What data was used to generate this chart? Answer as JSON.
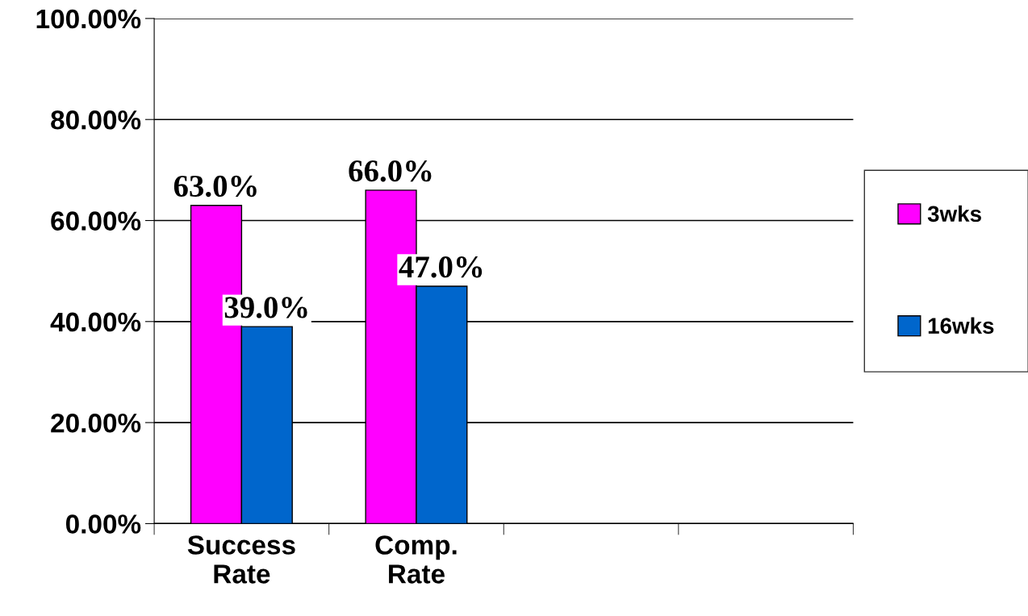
{
  "chart_data": {
    "type": "bar",
    "categories": [
      "Success\nRate",
      "Comp.\nRate",
      null,
      null
    ],
    "series": [
      {
        "name": "3wks",
        "color": "#ff00ff",
        "values": [
          63,
          66,
          null,
          null
        ],
        "value_labels": [
          "63.0%",
          "66.0%",
          null,
          null
        ]
      },
      {
        "name": "16wks",
        "color": "#0066cc",
        "values": [
          39,
          47,
          null,
          null
        ],
        "value_labels": [
          "39.0%",
          "47.0%",
          null,
          null
        ]
      }
    ],
    "ylim": [
      0,
      100
    ],
    "yticks": [
      {
        "value": 0,
        "label": "0.00%"
      },
      {
        "value": 20,
        "label": "20.00%"
      },
      {
        "value": 40,
        "label": "40.00%"
      },
      {
        "value": 60,
        "label": "60.00%"
      },
      {
        "value": 80,
        "label": "80.00%"
      },
      {
        "value": 100,
        "label": "100.00%"
      }
    ],
    "grid": "y",
    "legend": "right"
  }
}
